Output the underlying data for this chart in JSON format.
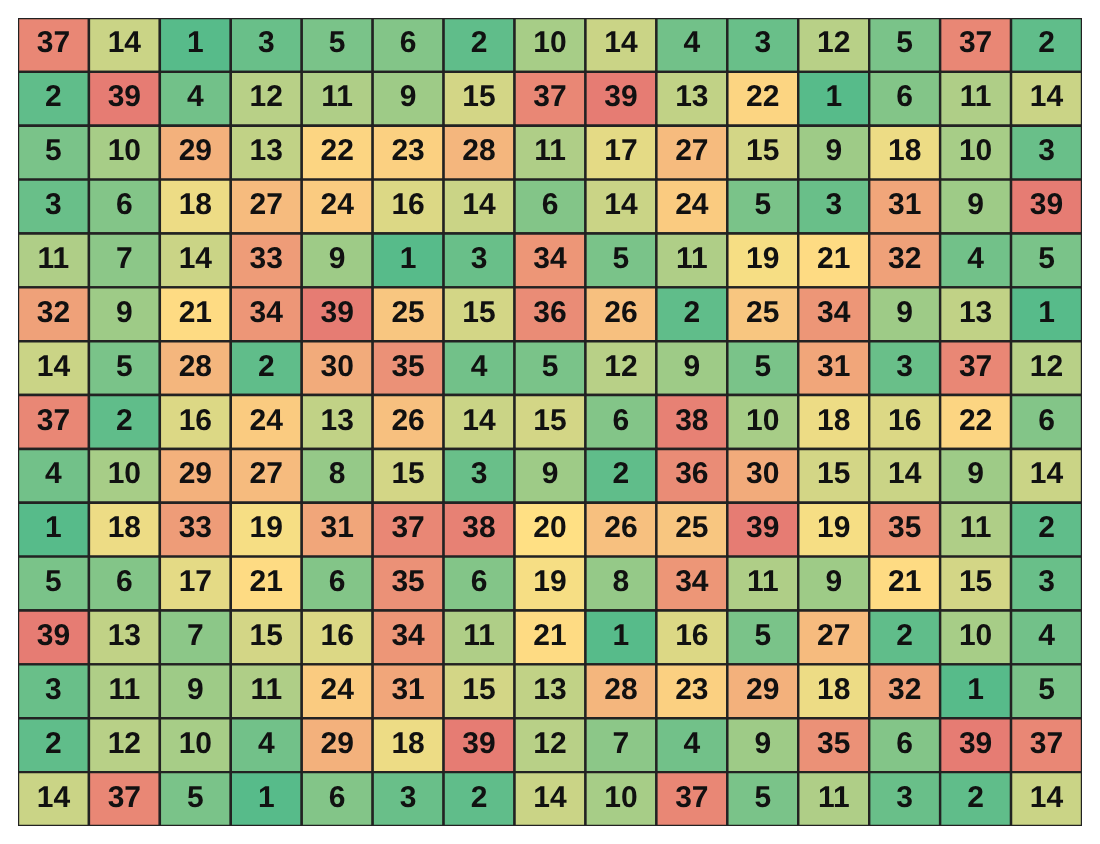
{
  "chart_data": {
    "type": "heatmap",
    "categories": [
      null,
      null,
      null,
      null,
      null,
      null,
      null,
      null,
      null,
      null,
      null,
      null,
      null,
      null,
      null
    ],
    "y_categories": [
      null,
      null,
      null,
      null,
      null,
      null,
      null,
      null,
      null,
      null,
      null,
      null,
      null,
      null,
      null
    ],
    "data_labels": true,
    "cells": [
      [
        37,
        14,
        1,
        3,
        5,
        6,
        2,
        10,
        14,
        4,
        3,
        12,
        5,
        37,
        2
      ],
      [
        2,
        39,
        4,
        12,
        11,
        9,
        15,
        37,
        39,
        13,
        22,
        1,
        6,
        11,
        14
      ],
      [
        5,
        10,
        29,
        13,
        22,
        23,
        28,
        11,
        17,
        27,
        15,
        9,
        18,
        10,
        3
      ],
      [
        3,
        6,
        18,
        27,
        24,
        16,
        14,
        6,
        14,
        24,
        5,
        3,
        31,
        9,
        39
      ],
      [
        11,
        7,
        14,
        33,
        9,
        1,
        3,
        34,
        5,
        11,
        19,
        21,
        32,
        4,
        5
      ],
      [
        32,
        9,
        21,
        34,
        39,
        25,
        15,
        36,
        26,
        2,
        25,
        34,
        9,
        13,
        1
      ],
      [
        14,
        5,
        28,
        2,
        30,
        35,
        4,
        5,
        12,
        9,
        5,
        31,
        3,
        37,
        12
      ],
      [
        37,
        2,
        16,
        24,
        13,
        26,
        14,
        15,
        6,
        38,
        10,
        18,
        16,
        22,
        6
      ],
      [
        4,
        10,
        29,
        27,
        8,
        15,
        3,
        9,
        2,
        36,
        30,
        15,
        14,
        9,
        14
      ],
      [
        1,
        18,
        33,
        19,
        31,
        37,
        38,
        20,
        26,
        25,
        39,
        19,
        35,
        11,
        2
      ],
      [
        5,
        6,
        17,
        21,
        6,
        35,
        6,
        19,
        8,
        34,
        11,
        9,
        21,
        15,
        3
      ],
      [
        39,
        13,
        7,
        15,
        16,
        34,
        11,
        21,
        1,
        16,
        5,
        27,
        2,
        10,
        4
      ],
      [
        3,
        11,
        9,
        11,
        24,
        31,
        15,
        13,
        28,
        23,
        29,
        18,
        32,
        1,
        5
      ],
      [
        2,
        12,
        10,
        4,
        29,
        18,
        39,
        12,
        7,
        4,
        9,
        35,
        6,
        39,
        37
      ],
      [
        14,
        37,
        5,
        1,
        6,
        3,
        2,
        14,
        10,
        37,
        5,
        11,
        3,
        2,
        14
      ]
    ]
  }
}
